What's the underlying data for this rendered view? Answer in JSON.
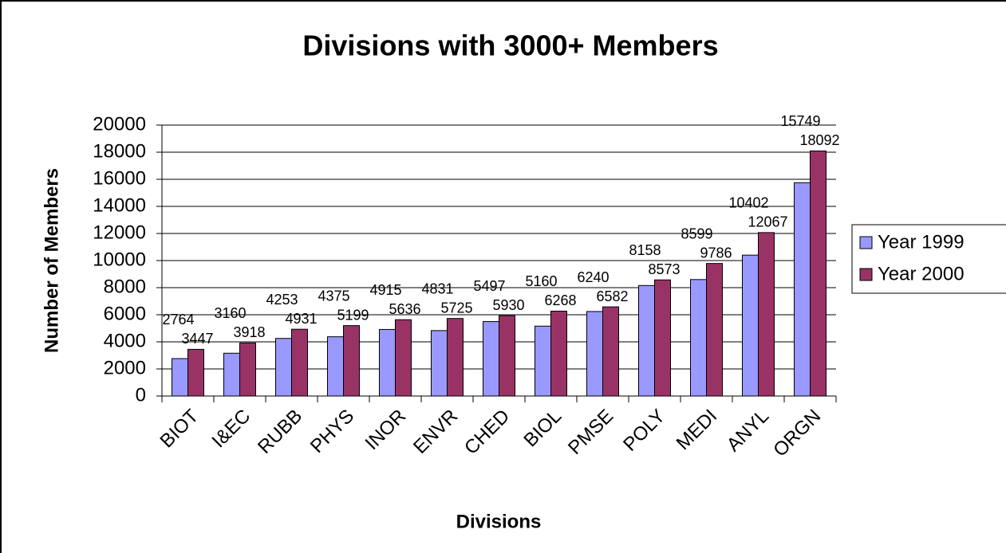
{
  "chart_data": {
    "type": "bar",
    "title": "Divisions with 3000+ Members",
    "x_label": "Divisions",
    "y_label": "Number of Members",
    "categories": [
      "BIOT",
      "I&EC",
      "RUBB",
      "PHYS",
      "INOR",
      "ENVR",
      "CHED",
      "BIOL",
      "PMSE",
      "POLY",
      "MEDI",
      "ANYL",
      "ORGN"
    ],
    "series": [
      {
        "name": "Year 1999",
        "color": "#9999ff",
        "values": [
          2764,
          3160,
          4253,
          4375,
          4915,
          4831,
          5497,
          5160,
          6240,
          8158,
          8599,
          10402,
          15749
        ]
      },
      {
        "name": "Year 2000",
        "color": "#993366",
        "values": [
          3447,
          3918,
          4931,
          5199,
          5636,
          5725,
          5930,
          6268,
          6582,
          8573,
          9786,
          12067,
          18092
        ]
      }
    ],
    "ylim": [
      0,
      20000
    ],
    "yticks": [
      0,
      2000,
      4000,
      6000,
      8000,
      10000,
      12000,
      14000,
      16000,
      18000,
      20000
    ],
    "grid": true,
    "legend": "right"
  }
}
